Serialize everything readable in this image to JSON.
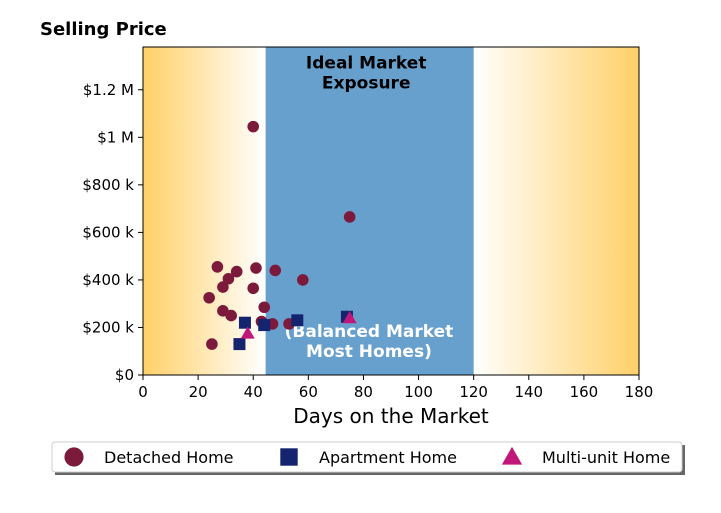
{
  "chart_data": {
    "type": "scatter",
    "title": "Selling Price",
    "xlabel": "Days on the Market",
    "ylabel": "",
    "xlim": [
      0,
      180
    ],
    "ylim": [
      0,
      1380000
    ],
    "x_ticks": [
      0,
      20,
      40,
      60,
      80,
      100,
      120,
      140,
      160,
      180
    ],
    "x_tick_labels": [
      "0",
      "20",
      "40",
      "60",
      "80",
      "100",
      "120",
      "140",
      "160",
      "180"
    ],
    "y_ticks": [
      0,
      200000,
      400000,
      600000,
      800000,
      1000000,
      1200000
    ],
    "y_tick_labels": [
      "$0",
      "$200 k",
      "$400 k",
      "$600 k",
      "$800 k",
      "$1 M",
      "$1.2 M"
    ],
    "grid": false,
    "legend_position": "bottom",
    "regions": [
      {
        "x_start": 44.5,
        "x_end": 120,
        "color": "#68a0cd"
      }
    ],
    "gradient_colors": {
      "edge": "#ffd068",
      "inner": "#ffffff"
    },
    "annotations": [
      {
        "lines": [
          "Ideal Market",
          "Exposure"
        ],
        "x": 81,
        "y": 1290000,
        "style": "dark"
      },
      {
        "lines": [
          "(Balanced Market",
          "Most Homes)"
        ],
        "x": 82,
        "y": 160000,
        "style": "light"
      }
    ],
    "series": [
      {
        "name": "Detached Home",
        "marker": "circle",
        "color": "#7b1a3a",
        "points": [
          [
            25,
            130000
          ],
          [
            24,
            325000
          ],
          [
            27,
            455000
          ],
          [
            29,
            370000
          ],
          [
            29,
            270000
          ],
          [
            31,
            405000
          ],
          [
            32,
            250000
          ],
          [
            34,
            435000
          ],
          [
            40,
            1045000
          ],
          [
            40,
            365000
          ],
          [
            41,
            450000
          ],
          [
            43,
            225000
          ],
          [
            44,
            285000
          ],
          [
            47,
            215000
          ],
          [
            48,
            440000
          ],
          [
            53,
            215000
          ],
          [
            58,
            400000
          ],
          [
            75,
            665000
          ]
        ]
      },
      {
        "name": "Apartment Home",
        "marker": "square",
        "color": "#14246f",
        "points": [
          [
            35,
            130000
          ],
          [
            37,
            220000
          ],
          [
            44,
            210000
          ],
          [
            56,
            230000
          ],
          [
            74,
            245000
          ]
        ]
      },
      {
        "name": "Multi-unit Home",
        "marker": "triangle",
        "color": "#c0177a",
        "points": [
          [
            38,
            175000
          ],
          [
            75,
            240000
          ]
        ]
      }
    ]
  }
}
